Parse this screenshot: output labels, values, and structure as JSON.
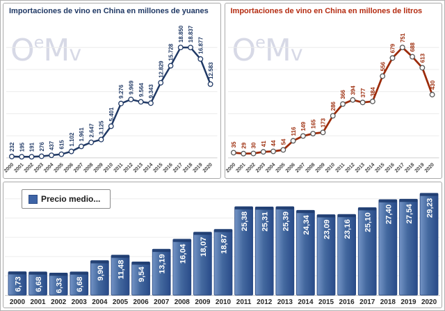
{
  "watermark": {
    "o": "O",
    "e": "e",
    "m": "M",
    "v": "v"
  },
  "colors": {
    "yuan_accent": "#1F3864",
    "litros_title": "#B42B10",
    "litros_line": "#9C2B0A",
    "bar_fill": "#3E64A6",
    "grid_line": "#ECECEC",
    "background": "#FFFFFF"
  },
  "chart_data": [
    {
      "type": "line",
      "title": "Importaciones de vino en China en millones de yuanes",
      "categories": [
        "2000",
        "2001",
        "2002",
        "2003",
        "2004",
        "2005",
        "2006",
        "2007",
        "2008",
        "2009",
        "2010",
        "2011",
        "2012",
        "2013",
        "2014",
        "2015",
        "2016",
        "2017",
        "2018",
        "2019",
        "2020"
      ],
      "values": [
        232,
        195,
        191,
        276,
        437,
        615,
        1102,
        1961,
        2647,
        3125,
        5401,
        9276,
        9969,
        9564,
        9343,
        12829,
        15728,
        18850,
        18837,
        16877,
        12583
      ],
      "labels": [
        "232",
        "195",
        "191",
        "276",
        "437",
        "615",
        "1.102",
        "1.961",
        "2.647",
        "3.125",
        "5.401",
        "9.276",
        "9.969",
        "9.564",
        "9.343",
        "12.829",
        "15.728",
        "18.850",
        "18.837",
        "16.877",
        "12.583"
      ],
      "ylim": [
        0,
        18850
      ],
      "xlabel": "",
      "ylabel": "",
      "grid": "on",
      "legend_position": "none",
      "line_color": "#1F3864",
      "marker_stroke": "#1F3864",
      "label_color": "#1F3864",
      "stroke_width": 2.5
    },
    {
      "type": "line",
      "title": "Importaciones de vino en China en millones de litros",
      "categories": [
        "2000",
        "2001",
        "2002",
        "2003",
        "2004",
        "2005",
        "2006",
        "2007",
        "2008",
        "2009",
        "2010",
        "2011",
        "2012",
        "2013",
        "2014",
        "2015",
        "2016",
        "2017",
        "2018",
        "2019",
        "2020"
      ],
      "values": [
        35,
        29,
        30,
        41,
        44,
        54,
        116,
        149,
        165,
        173,
        286,
        366,
        394,
        377,
        384,
        556,
        679,
        751,
        688,
        613,
        430
      ],
      "labels": [
        "35",
        "29",
        "30",
        "41",
        "44",
        "54",
        "116",
        "149",
        "165",
        "173",
        "286",
        "366",
        "394",
        "377",
        "384",
        "556",
        "679",
        "751",
        "688",
        "613",
        "430"
      ],
      "ylim": [
        0,
        751
      ],
      "xlabel": "",
      "ylabel": "",
      "grid": "on",
      "legend_position": "none",
      "line_color": "#9C2B0A",
      "marker_stroke": "#555555",
      "label_color": "#9C2B0A",
      "stroke_width": 2.8
    },
    {
      "type": "bar",
      "title": "",
      "legend": "Precio medio...",
      "categories": [
        "2000",
        "2001",
        "2002",
        "2003",
        "2004",
        "2005",
        "2006",
        "2007",
        "2008",
        "2009",
        "2010",
        "2011",
        "2012",
        "2013",
        "2014",
        "2015",
        "2016",
        "2017",
        "2018",
        "2019",
        "2020"
      ],
      "values": [
        6.73,
        6.68,
        6.33,
        6.68,
        9.9,
        11.48,
        9.54,
        13.19,
        16.04,
        18.07,
        18.87,
        25.38,
        25.31,
        25.39,
        24.34,
        23.09,
        23.16,
        25.1,
        27.4,
        27.54,
        29.23
      ],
      "labels": [
        "6,73",
        "6,68",
        "6,33",
        "6,68",
        "9,90",
        "11,48",
        "9,54",
        "13,19",
        "16,04",
        "18,07",
        "18,87",
        "25,38",
        "25,31",
        "25,39",
        "24,34",
        "23,09",
        "23,16",
        "25,10",
        "27,40",
        "27,54",
        "29,23"
      ],
      "ylim": [
        0,
        30
      ],
      "xlabel": "",
      "ylabel": "",
      "grid": "on",
      "legend_position": "upper-left"
    }
  ]
}
